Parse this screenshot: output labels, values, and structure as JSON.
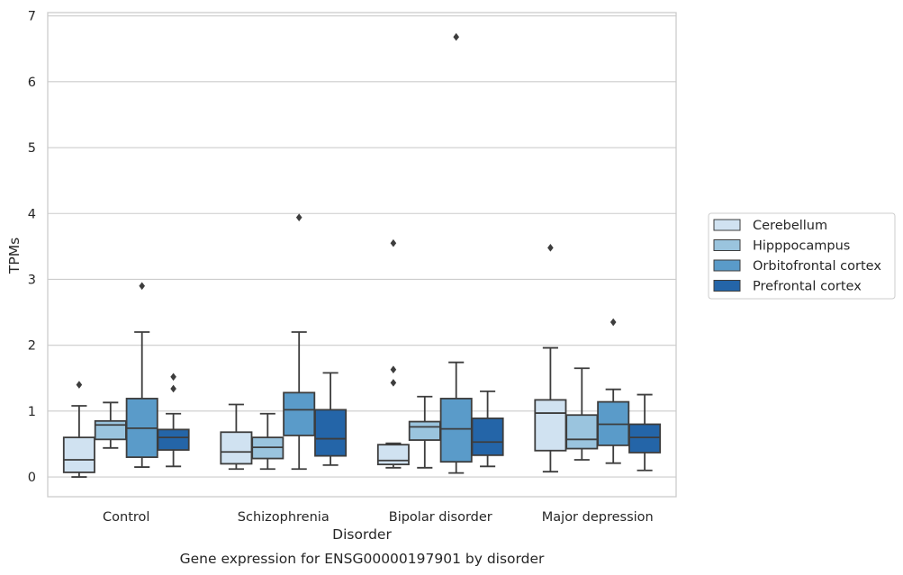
{
  "caption": "Gene expression for ENSG00000197901 by disorder",
  "chart_data": {
    "type": "box",
    "xlabel": "Disorder",
    "ylabel": "TPMs",
    "ylim": [
      -0.3,
      7.05
    ],
    "yticks": [
      0,
      1,
      2,
      3,
      4,
      5,
      6,
      7
    ],
    "grid": "horizontal",
    "legend_position": "right",
    "categories": [
      "Control",
      "Schizophrenia",
      "Bipolar disorder",
      "Major depression"
    ],
    "series": [
      {
        "name": "Cerebellum",
        "color": "#d0e2f1",
        "boxes": [
          {
            "whisker_low": 0.0,
            "q1": 0.07,
            "median": 0.26,
            "q3": 0.6,
            "whisker_high": 1.08,
            "outliers": [
              1.4
            ]
          },
          {
            "whisker_low": 0.12,
            "q1": 0.2,
            "median": 0.38,
            "q3": 0.68,
            "whisker_high": 1.1,
            "outliers": []
          },
          {
            "whisker_low": 0.14,
            "q1": 0.19,
            "median": 0.25,
            "q3": 0.49,
            "whisker_high": 0.51,
            "outliers": [
              1.43,
              1.63,
              3.55
            ]
          },
          {
            "whisker_low": 0.08,
            "q1": 0.4,
            "median": 0.97,
            "q3": 1.17,
            "whisker_high": 1.96,
            "outliers": [
              3.48
            ]
          }
        ]
      },
      {
        "name": "Hipppocampus",
        "color": "#9ac4de",
        "boxes": [
          {
            "whisker_low": 0.44,
            "q1": 0.57,
            "median": 0.79,
            "q3": 0.85,
            "whisker_high": 1.13,
            "outliers": []
          },
          {
            "whisker_low": 0.12,
            "q1": 0.28,
            "median": 0.45,
            "q3": 0.6,
            "whisker_high": 0.96,
            "outliers": []
          },
          {
            "whisker_low": 0.14,
            "q1": 0.56,
            "median": 0.76,
            "q3": 0.84,
            "whisker_high": 1.22,
            "outliers": []
          },
          {
            "whisker_low": 0.26,
            "q1": 0.43,
            "median": 0.57,
            "q3": 0.94,
            "whisker_high": 1.65,
            "outliers": []
          }
        ]
      },
      {
        "name": "Orbitofrontal cortex",
        "color": "#5a9bc9",
        "boxes": [
          {
            "whisker_low": 0.15,
            "q1": 0.3,
            "median": 0.74,
            "q3": 1.19,
            "whisker_high": 2.2,
            "outliers": [
              2.9
            ]
          },
          {
            "whisker_low": 0.12,
            "q1": 0.63,
            "median": 1.02,
            "q3": 1.28,
            "whisker_high": 2.2,
            "outliers": [
              3.94
            ]
          },
          {
            "whisker_low": 0.06,
            "q1": 0.23,
            "median": 0.73,
            "q3": 1.19,
            "whisker_high": 1.74,
            "outliers": [
              6.68
            ]
          },
          {
            "whisker_low": 0.21,
            "q1": 0.48,
            "median": 0.8,
            "q3": 1.14,
            "whisker_high": 1.33,
            "outliers": [
              2.35
            ]
          }
        ]
      },
      {
        "name": "Prefrontal cortex",
        "color": "#2465a8",
        "boxes": [
          {
            "whisker_low": 0.16,
            "q1": 0.41,
            "median": 0.6,
            "q3": 0.72,
            "whisker_high": 0.96,
            "outliers": [
              1.34,
              1.52
            ]
          },
          {
            "whisker_low": 0.18,
            "q1": 0.32,
            "median": 0.58,
            "q3": 1.02,
            "whisker_high": 1.58,
            "outliers": []
          },
          {
            "whisker_low": 0.16,
            "q1": 0.33,
            "median": 0.53,
            "q3": 0.89,
            "whisker_high": 1.3,
            "outliers": []
          },
          {
            "whisker_low": 0.1,
            "q1": 0.37,
            "median": 0.6,
            "q3": 0.8,
            "whisker_high": 1.25,
            "outliers": []
          }
        ]
      }
    ]
  }
}
